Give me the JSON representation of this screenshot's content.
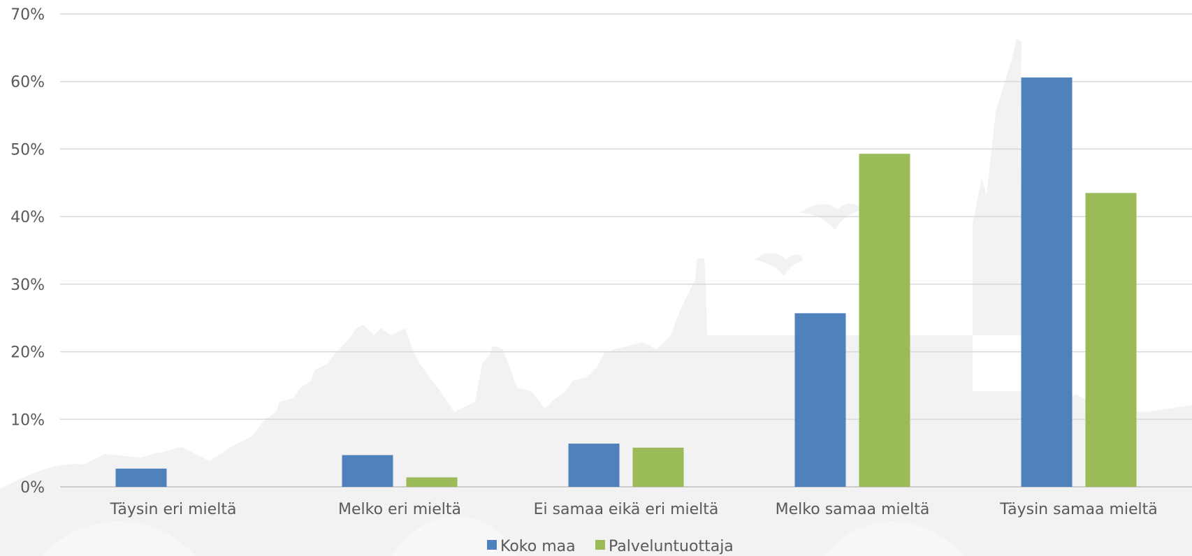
{
  "chart_data": {
    "type": "bar",
    "categories": [
      "Täysin eri mieltä",
      "Melko eri mieltä",
      "Ei samaa eikä eri mieltä",
      "Melko samaa mieltä",
      "Täysin samaa mieltä"
    ],
    "series": [
      {
        "name": "Koko maa",
        "values": [
          2.7,
          4.7,
          6.4,
          25.7,
          60.6
        ],
        "color": "#4F81BD"
      },
      {
        "name": "Palveluntuottaja",
        "values": [
          0,
          1.4,
          5.8,
          49.3,
          43.5
        ],
        "color": "#9BBB59"
      }
    ],
    "title": "",
    "xlabel": "",
    "ylabel": "",
    "ylim": [
      0,
      70
    ],
    "yticks": [
      "0%",
      "10%",
      "20%",
      "30%",
      "40%",
      "50%",
      "60%",
      "70%"
    ],
    "grid": true,
    "legend": "bottom-center"
  }
}
